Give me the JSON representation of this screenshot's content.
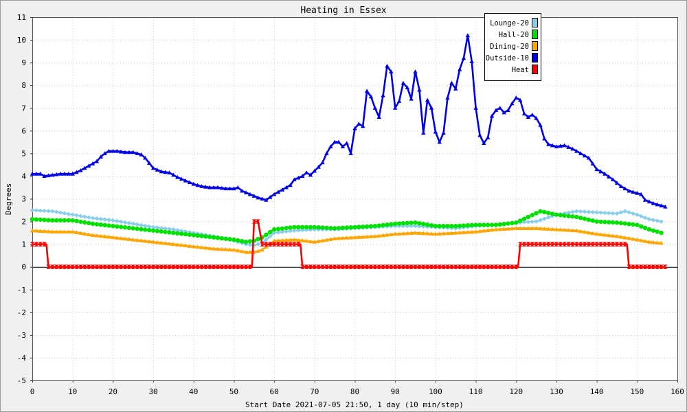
{
  "chart_data": {
    "type": "line",
    "title": "Heating in Essex",
    "xlabel": "Start Date 2021-07-05 21:50, 1 day (10 min/step)",
    "ylabel": "Degrees",
    "xlim": [
      0,
      160
    ],
    "ylim": [
      -5,
      11
    ],
    "x_ticks": [
      0,
      10,
      20,
      30,
      40,
      50,
      60,
      70,
      80,
      90,
      100,
      110,
      120,
      130,
      140,
      150,
      160
    ],
    "y_ticks": [
      -5,
      -4,
      -3,
      -2,
      -1,
      0,
      1,
      2,
      3,
      4,
      5,
      6,
      7,
      8,
      9,
      10,
      11
    ],
    "grid": true,
    "legend_position": "top-right",
    "series": [
      {
        "name": "Lounge-20",
        "color": "#87ceeb",
        "marker": "diamond",
        "points": [
          [
            0,
            2.5
          ],
          [
            5,
            2.45
          ],
          [
            10,
            2.3
          ],
          [
            15,
            2.15
          ],
          [
            20,
            2.05
          ],
          [
            25,
            1.9
          ],
          [
            30,
            1.75
          ],
          [
            35,
            1.65
          ],
          [
            40,
            1.5
          ],
          [
            45,
            1.35
          ],
          [
            50,
            1.15
          ],
          [
            53,
            1.0
          ],
          [
            55,
            0.95
          ],
          [
            57,
            1.05
          ],
          [
            60,
            1.5
          ],
          [
            65,
            1.6
          ],
          [
            70,
            1.65
          ],
          [
            75,
            1.65
          ],
          [
            80,
            1.7
          ],
          [
            85,
            1.75
          ],
          [
            90,
            1.8
          ],
          [
            95,
            1.8
          ],
          [
            100,
            1.75
          ],
          [
            105,
            1.7
          ],
          [
            110,
            1.8
          ],
          [
            115,
            1.85
          ],
          [
            120,
            1.95
          ],
          [
            125,
            2.0
          ],
          [
            130,
            2.3
          ],
          [
            135,
            2.45
          ],
          [
            140,
            2.4
          ],
          [
            145,
            2.35
          ],
          [
            147,
            2.45
          ],
          [
            150,
            2.3
          ],
          [
            153,
            2.1
          ],
          [
            156,
            2.0
          ]
        ]
      },
      {
        "name": "Hall-20",
        "color": "#00e000",
        "marker": "circle",
        "points": [
          [
            0,
            2.1
          ],
          [
            5,
            2.05
          ],
          [
            10,
            2.05
          ],
          [
            15,
            1.9
          ],
          [
            20,
            1.8
          ],
          [
            25,
            1.7
          ],
          [
            30,
            1.6
          ],
          [
            35,
            1.5
          ],
          [
            40,
            1.4
          ],
          [
            45,
            1.3
          ],
          [
            50,
            1.2
          ],
          [
            53,
            1.1
          ],
          [
            55,
            1.15
          ],
          [
            57,
            1.3
          ],
          [
            60,
            1.65
          ],
          [
            65,
            1.75
          ],
          [
            70,
            1.75
          ],
          [
            75,
            1.7
          ],
          [
            80,
            1.75
          ],
          [
            85,
            1.8
          ],
          [
            90,
            1.9
          ],
          [
            95,
            1.95
          ],
          [
            100,
            1.8
          ],
          [
            105,
            1.8
          ],
          [
            110,
            1.85
          ],
          [
            115,
            1.85
          ],
          [
            120,
            1.95
          ],
          [
            123,
            2.2
          ],
          [
            126,
            2.45
          ],
          [
            130,
            2.3
          ],
          [
            135,
            2.2
          ],
          [
            140,
            2.0
          ],
          [
            145,
            1.95
          ],
          [
            150,
            1.85
          ],
          [
            153,
            1.65
          ],
          [
            156,
            1.5
          ]
        ]
      },
      {
        "name": "Dining-20",
        "color": "#ffa500",
        "marker": "triangle",
        "points": [
          [
            0,
            1.6
          ],
          [
            5,
            1.55
          ],
          [
            10,
            1.55
          ],
          [
            15,
            1.4
          ],
          [
            20,
            1.3
          ],
          [
            25,
            1.2
          ],
          [
            30,
            1.1
          ],
          [
            35,
            1.0
          ],
          [
            40,
            0.9
          ],
          [
            45,
            0.8
          ],
          [
            50,
            0.75
          ],
          [
            53,
            0.65
          ],
          [
            55,
            0.65
          ],
          [
            57,
            0.75
          ],
          [
            60,
            1.15
          ],
          [
            65,
            1.2
          ],
          [
            70,
            1.1
          ],
          [
            75,
            1.25
          ],
          [
            80,
            1.3
          ],
          [
            85,
            1.35
          ],
          [
            90,
            1.45
          ],
          [
            95,
            1.5
          ],
          [
            100,
            1.45
          ],
          [
            105,
            1.5
          ],
          [
            110,
            1.55
          ],
          [
            115,
            1.65
          ],
          [
            120,
            1.7
          ],
          [
            125,
            1.7
          ],
          [
            130,
            1.65
          ],
          [
            135,
            1.6
          ],
          [
            140,
            1.45
          ],
          [
            145,
            1.35
          ],
          [
            150,
            1.2
          ],
          [
            153,
            1.1
          ],
          [
            156,
            1.05
          ]
        ]
      },
      {
        "name": "Outside-10",
        "color": "#0000e8",
        "marker": "triangle",
        "points": [
          [
            0,
            4.1
          ],
          [
            2,
            4.1
          ],
          [
            3,
            4.0
          ],
          [
            5,
            4.05
          ],
          [
            7,
            4.1
          ],
          [
            10,
            4.1
          ],
          [
            12,
            4.25
          ],
          [
            14,
            4.45
          ],
          [
            16,
            4.65
          ],
          [
            17,
            4.85
          ],
          [
            18,
            5.0
          ],
          [
            19,
            5.1
          ],
          [
            21,
            5.1
          ],
          [
            23,
            5.05
          ],
          [
            25,
            5.05
          ],
          [
            27,
            4.95
          ],
          [
            28,
            4.8
          ],
          [
            30,
            4.35
          ],
          [
            32,
            4.2
          ],
          [
            34,
            4.15
          ],
          [
            36,
            3.95
          ],
          [
            38,
            3.8
          ],
          [
            40,
            3.65
          ],
          [
            42,
            3.55
          ],
          [
            44,
            3.5
          ],
          [
            46,
            3.5
          ],
          [
            48,
            3.45
          ],
          [
            50,
            3.45
          ],
          [
            51,
            3.5
          ],
          [
            52,
            3.35
          ],
          [
            54,
            3.2
          ],
          [
            56,
            3.05
          ],
          [
            58,
            2.95
          ],
          [
            60,
            3.2
          ],
          [
            62,
            3.4
          ],
          [
            64,
            3.6
          ],
          [
            65,
            3.85
          ],
          [
            67,
            4.0
          ],
          [
            68,
            4.15
          ],
          [
            69,
            4.05
          ],
          [
            71,
            4.4
          ],
          [
            72,
            4.6
          ],
          [
            73,
            5.0
          ],
          [
            74,
            5.3
          ],
          [
            75,
            5.5
          ],
          [
            76,
            5.5
          ],
          [
            77,
            5.3
          ],
          [
            78,
            5.45
          ],
          [
            79,
            5.0
          ],
          [
            80,
            6.1
          ],
          [
            81,
            6.3
          ],
          [
            82,
            6.2
          ],
          [
            83,
            7.75
          ],
          [
            84,
            7.5
          ],
          [
            85,
            7.0
          ],
          [
            86,
            6.6
          ],
          [
            87,
            7.55
          ],
          [
            88,
            8.85
          ],
          [
            89,
            8.6
          ],
          [
            90,
            7.0
          ],
          [
            91,
            7.3
          ],
          [
            92,
            8.1
          ],
          [
            93,
            7.9
          ],
          [
            94,
            7.4
          ],
          [
            95,
            8.6
          ],
          [
            96,
            7.8
          ],
          [
            97,
            5.9
          ],
          [
            98,
            7.35
          ],
          [
            99,
            7.0
          ],
          [
            100,
            5.95
          ],
          [
            101,
            5.5
          ],
          [
            102,
            5.9
          ],
          [
            103,
            7.45
          ],
          [
            104,
            8.1
          ],
          [
            105,
            7.85
          ],
          [
            106,
            8.7
          ],
          [
            107,
            9.2
          ],
          [
            108,
            10.2
          ],
          [
            109,
            9.05
          ],
          [
            110,
            7.0
          ],
          [
            111,
            5.8
          ],
          [
            112,
            5.45
          ],
          [
            113,
            5.7
          ],
          [
            114,
            6.65
          ],
          [
            115,
            6.9
          ],
          [
            116,
            7.0
          ],
          [
            117,
            6.8
          ],
          [
            118,
            6.9
          ],
          [
            119,
            7.2
          ],
          [
            120,
            7.45
          ],
          [
            121,
            7.35
          ],
          [
            122,
            6.75
          ],
          [
            123,
            6.6
          ],
          [
            124,
            6.7
          ],
          [
            125,
            6.55
          ],
          [
            126,
            6.25
          ],
          [
            127,
            5.65
          ],
          [
            128,
            5.4
          ],
          [
            130,
            5.3
          ],
          [
            132,
            5.35
          ],
          [
            134,
            5.2
          ],
          [
            136,
            5.0
          ],
          [
            138,
            4.8
          ],
          [
            140,
            4.3
          ],
          [
            142,
            4.1
          ],
          [
            144,
            3.85
          ],
          [
            146,
            3.55
          ],
          [
            148,
            3.35
          ],
          [
            150,
            3.25
          ],
          [
            151,
            3.2
          ],
          [
            152,
            2.95
          ],
          [
            154,
            2.8
          ],
          [
            156,
            2.7
          ],
          [
            157,
            2.65
          ]
        ]
      },
      {
        "name": "Heat",
        "color": "#ff0000",
        "marker": "bowtie",
        "points": [
          [
            0,
            1
          ],
          [
            3.5,
            1
          ],
          [
            4,
            0
          ],
          [
            54.5,
            0
          ],
          [
            55,
            2
          ],
          [
            56,
            2
          ],
          [
            57,
            1
          ],
          [
            66.5,
            1
          ],
          [
            67,
            0
          ],
          [
            120.5,
            0
          ],
          [
            121,
            1
          ],
          [
            147.5,
            1
          ],
          [
            148,
            0
          ],
          [
            157,
            0
          ]
        ]
      }
    ]
  }
}
